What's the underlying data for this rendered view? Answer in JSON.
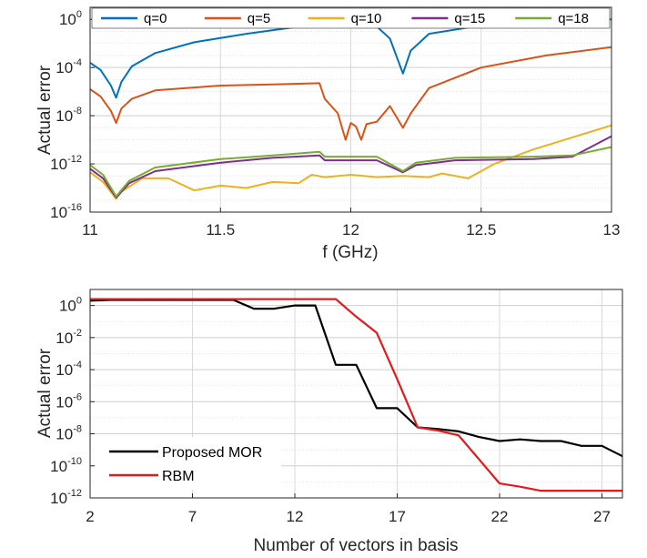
{
  "chart_data": [
    {
      "type": "line",
      "xlabel": "f (GHz)",
      "ylabel": "Actual error",
      "x_ticks": [
        "11",
        "11.5",
        "12",
        "12.5",
        "13"
      ],
      "y_ticks": [
        {
          "base": "10",
          "exp": "0"
        },
        {
          "base": "10",
          "exp": "-4"
        },
        {
          "base": "10",
          "exp": "-8"
        },
        {
          "base": "10",
          "exp": "-12"
        },
        {
          "base": "10",
          "exp": "-16"
        }
      ],
      "xlim": [
        11,
        13
      ],
      "ylim_log10": [
        -16,
        1
      ],
      "y_scale": "log",
      "grid": true,
      "legend_position": "top",
      "series": [
        {
          "name": "q=0",
          "color": "#0072BD",
          "points": [
            [
              11,
              -3.6
            ],
            [
              11.04,
              -4.2
            ],
            [
              11.08,
              -5.5
            ],
            [
              11.1,
              -6.5
            ],
            [
              11.12,
              -5.2
            ],
            [
              11.16,
              -3.9
            ],
            [
              11.25,
              -2.8
            ],
            [
              11.4,
              -1.9
            ],
            [
              11.6,
              -1.2
            ],
            [
              11.8,
              -0.6
            ],
            [
              11.88,
              -0.3
            ],
            [
              11.9,
              -0.4
            ],
            [
              11.95,
              -0.4
            ],
            [
              12.0,
              -0.45
            ],
            [
              12.05,
              -0.4
            ],
            [
              12.1,
              -0.6
            ],
            [
              12.15,
              -1.6
            ],
            [
              12.2,
              -4.5
            ],
            [
              12.23,
              -2.6
            ],
            [
              12.3,
              -1.2
            ],
            [
              12.5,
              -0.5
            ],
            [
              12.75,
              -0.2
            ],
            [
              13,
              0.0
            ]
          ]
        },
        {
          "name": "q=5",
          "color": "#D95319",
          "points": [
            [
              11,
              -5.8
            ],
            [
              11.04,
              -6.4
            ],
            [
              11.08,
              -7.6
            ],
            [
              11.1,
              -8.6
            ],
            [
              11.12,
              -7.4
            ],
            [
              11.16,
              -6.6
            ],
            [
              11.25,
              -5.9
            ],
            [
              11.5,
              -5.5
            ],
            [
              11.7,
              -5.4
            ],
            [
              11.88,
              -5.3
            ],
            [
              11.9,
              -6.6
            ],
            [
              11.95,
              -7.8
            ],
            [
              11.98,
              -10.0
            ],
            [
              12.0,
              -8.6
            ],
            [
              12.02,
              -8.9
            ],
            [
              12.04,
              -10.0
            ],
            [
              12.06,
              -8.7
            ],
            [
              12.1,
              -8.5
            ],
            [
              12.15,
              -7.2
            ],
            [
              12.2,
              -9.0
            ],
            [
              12.23,
              -7.8
            ],
            [
              12.3,
              -5.7
            ],
            [
              12.5,
              -4.0
            ],
            [
              12.75,
              -3.0
            ],
            [
              13,
              -2.3
            ]
          ]
        },
        {
          "name": "q=10",
          "color": "#EDB120",
          "points": [
            [
              11,
              -12.7
            ],
            [
              11.05,
              -13.5
            ],
            [
              11.1,
              -14.9
            ],
            [
              11.12,
              -14.3
            ],
            [
              11.2,
              -13.2
            ],
            [
              11.3,
              -13.2
            ],
            [
              11.4,
              -14.2
            ],
            [
              11.5,
              -13.8
            ],
            [
              11.6,
              -14.0
            ],
            [
              11.7,
              -13.5
            ],
            [
              11.8,
              -13.6
            ],
            [
              11.85,
              -12.9
            ],
            [
              11.9,
              -13.1
            ],
            [
              12.0,
              -12.9
            ],
            [
              12.1,
              -13.1
            ],
            [
              12.2,
              -13.0
            ],
            [
              12.3,
              -13.1
            ],
            [
              12.35,
              -12.8
            ],
            [
              12.45,
              -13.2
            ],
            [
              12.55,
              -12.0
            ],
            [
              12.7,
              -10.8
            ],
            [
              12.85,
              -9.8
            ],
            [
              13,
              -8.8
            ]
          ]
        },
        {
          "name": "q=15",
          "color": "#7E2F8E",
          "points": [
            [
              11,
              -12.4
            ],
            [
              11.05,
              -13.2
            ],
            [
              11.1,
              -14.8
            ],
            [
              11.15,
              -13.6
            ],
            [
              11.25,
              -12.6
            ],
            [
              11.5,
              -11.9
            ],
            [
              11.7,
              -11.5
            ],
            [
              11.88,
              -11.3
            ],
            [
              11.9,
              -11.7
            ],
            [
              12.0,
              -11.7
            ],
            [
              12.1,
              -11.7
            ],
            [
              12.2,
              -12.7
            ],
            [
              12.25,
              -12.1
            ],
            [
              12.4,
              -11.7
            ],
            [
              12.7,
              -11.6
            ],
            [
              12.85,
              -11.4
            ],
            [
              13,
              -9.7
            ]
          ]
        },
        {
          "name": "q=18",
          "color": "#77AC30",
          "points": [
            [
              11,
              -12.1
            ],
            [
              11.05,
              -12.9
            ],
            [
              11.1,
              -14.7
            ],
            [
              11.15,
              -13.4
            ],
            [
              11.25,
              -12.3
            ],
            [
              11.5,
              -11.6
            ],
            [
              11.7,
              -11.3
            ],
            [
              11.88,
              -11.0
            ],
            [
              11.9,
              -11.4
            ],
            [
              12.0,
              -11.4
            ],
            [
              12.1,
              -11.4
            ],
            [
              12.2,
              -12.6
            ],
            [
              12.25,
              -11.9
            ],
            [
              12.4,
              -11.5
            ],
            [
              12.7,
              -11.4
            ],
            [
              12.85,
              -11.3
            ],
            [
              13,
              -10.6
            ]
          ]
        }
      ]
    },
    {
      "type": "line",
      "xlabel": "Number of vectors in basis",
      "ylabel": "Actual error",
      "x_ticks": [
        "2",
        "7",
        "12",
        "17",
        "22",
        "27"
      ],
      "y_ticks": [
        {
          "base": "10",
          "exp": "0"
        },
        {
          "base": "10",
          "exp": "-2"
        },
        {
          "base": "10",
          "exp": "-4"
        },
        {
          "base": "10",
          "exp": "-6"
        },
        {
          "base": "10",
          "exp": "-8"
        },
        {
          "base": "10",
          "exp": "-10"
        },
        {
          "base": "10",
          "exp": "-12"
        }
      ],
      "xlim": [
        2,
        28
      ],
      "ylim_log10": [
        -12,
        1
      ],
      "y_scale": "log",
      "grid": true,
      "legend_position": "bottom-left",
      "series": [
        {
          "name": "Proposed MOR",
          "color": "#000000",
          "points": [
            [
              2,
              0.3
            ],
            [
              3,
              0.35
            ],
            [
              4,
              0.35
            ],
            [
              5,
              0.35
            ],
            [
              6,
              0.35
            ],
            [
              7,
              0.35
            ],
            [
              8,
              0.35
            ],
            [
              9,
              0.35
            ],
            [
              10,
              -0.2
            ],
            [
              11,
              -0.2
            ],
            [
              12,
              0.0
            ],
            [
              13,
              0.0
            ],
            [
              14,
              -3.7
            ],
            [
              15,
              -3.7
            ],
            [
              16,
              -6.4
            ],
            [
              17,
              -6.4
            ],
            [
              18,
              -7.6
            ],
            [
              19,
              -7.7
            ],
            [
              20,
              -7.85
            ],
            [
              21,
              -8.2
            ],
            [
              22,
              -8.45
            ],
            [
              23,
              -8.35
            ],
            [
              24,
              -8.45
            ],
            [
              25,
              -8.45
            ],
            [
              26,
              -8.75
            ],
            [
              27,
              -8.75
            ],
            [
              28,
              -9.4
            ]
          ]
        },
        {
          "name": "RBM",
          "color": "#E31A1C",
          "points": [
            [
              2,
              0.4
            ],
            [
              3,
              0.4
            ],
            [
              4,
              0.4
            ],
            [
              5,
              0.4
            ],
            [
              6,
              0.4
            ],
            [
              7,
              0.4
            ],
            [
              8,
              0.4
            ],
            [
              9,
              0.4
            ],
            [
              10,
              0.4
            ],
            [
              11,
              0.4
            ],
            [
              12,
              0.4
            ],
            [
              13,
              0.4
            ],
            [
              14,
              0.4
            ],
            [
              15,
              -0.7
            ],
            [
              16,
              -1.7
            ],
            [
              17,
              -4.6
            ],
            [
              18,
              -7.6
            ],
            [
              19,
              -7.8
            ],
            [
              20,
              -8.1
            ],
            [
              21,
              -9.6
            ],
            [
              22,
              -11.1
            ],
            [
              23,
              -11.3
            ],
            [
              24,
              -11.55
            ],
            [
              25,
              -11.55
            ],
            [
              26,
              -11.55
            ],
            [
              27,
              -11.55
            ],
            [
              28,
              -11.55
            ]
          ]
        }
      ]
    }
  ]
}
